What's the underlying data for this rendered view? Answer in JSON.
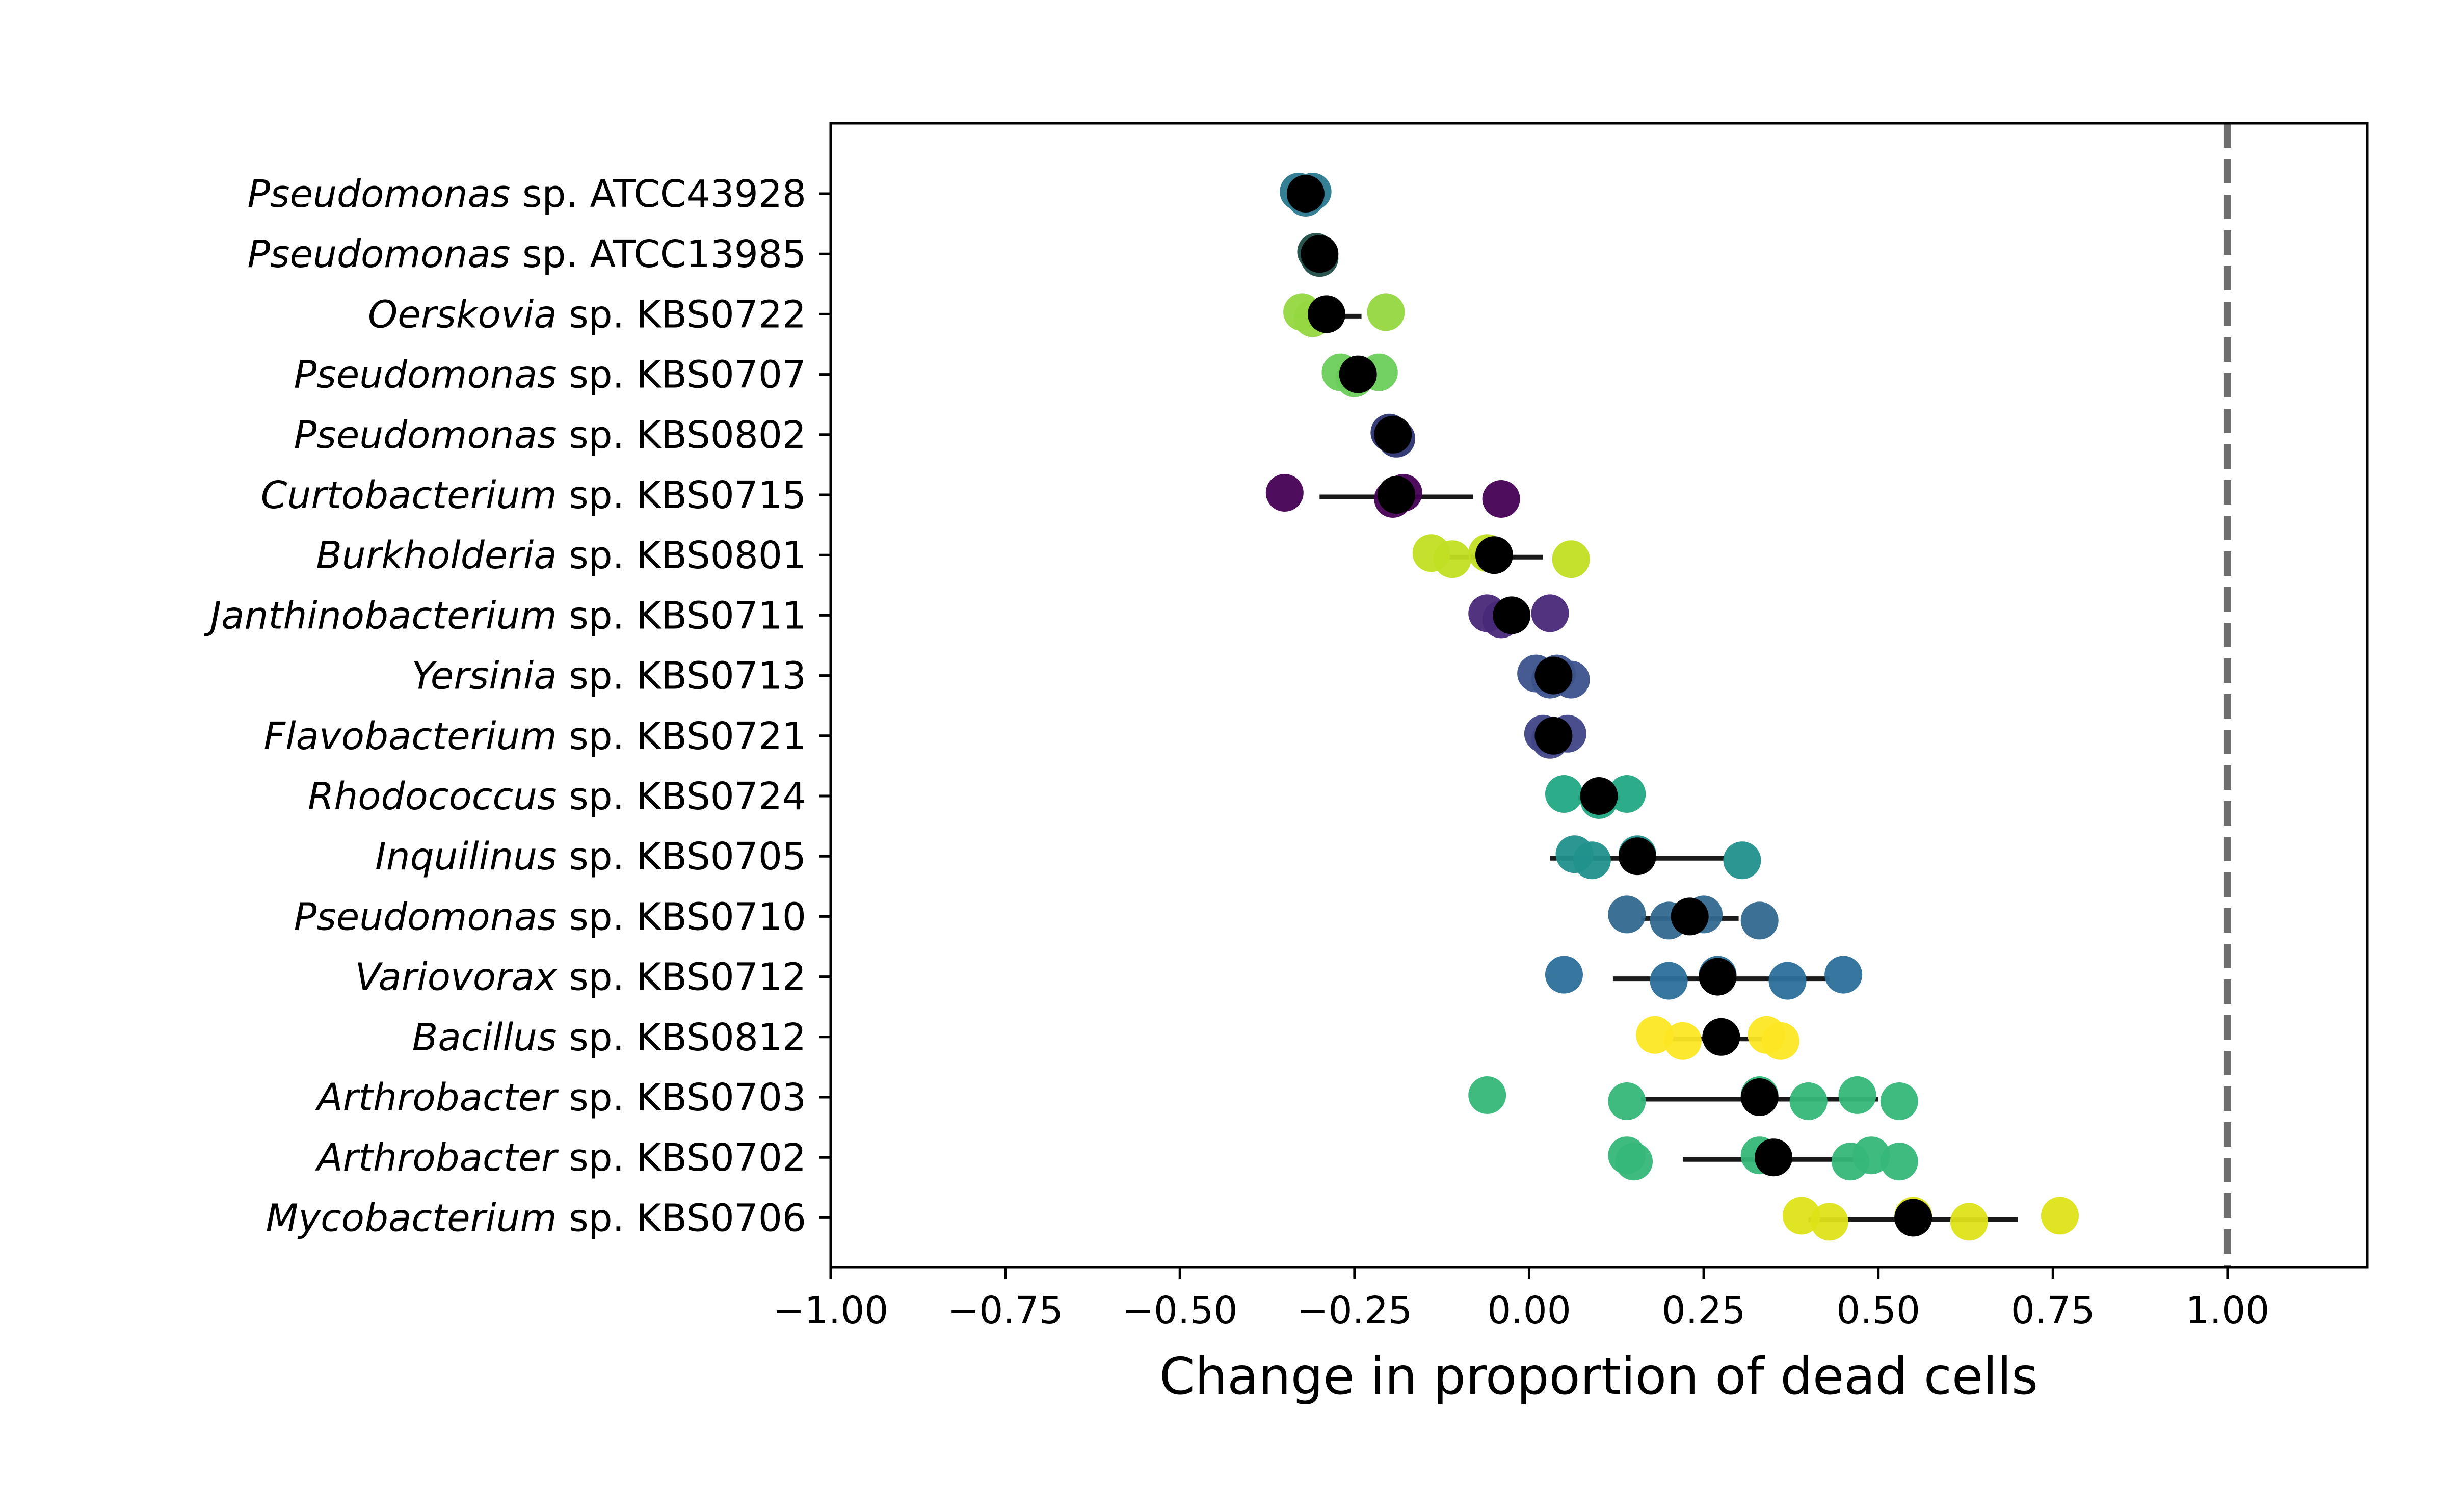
{
  "chart_data": {
    "type": "scatter",
    "title": "",
    "xlabel": "Change in proportion of dead cells",
    "ylabel": "",
    "xlim": [
      -1.0,
      1.2
    ],
    "x_ticks": [
      "−1.00",
      "−0.75",
      "−0.50",
      "−0.25",
      "0.00",
      "0.25",
      "0.50",
      "0.75",
      "1.00"
    ],
    "x_tick_values": [
      -1.0,
      -0.75,
      -0.5,
      -0.25,
      0.0,
      0.25,
      0.5,
      0.75,
      1.0
    ],
    "reference_line": {
      "x": 1.0,
      "style": "dashed",
      "color": "#6e6e6e"
    },
    "grid": false,
    "mean_marker_color": "#000000",
    "categories": [
      {
        "genus": "Pseudomonas",
        "strain": "sp. ATCC43928",
        "color": "#2a788e",
        "points": [
          -0.33,
          -0.32,
          -0.31
        ],
        "mean": -0.32,
        "ci": [
          -0.33,
          -0.31
        ]
      },
      {
        "genus": "Pseudomonas",
        "strain": "sp. ATCC13985",
        "color": "#1f4b45",
        "points": [
          -0.305,
          -0.3
        ],
        "mean": -0.3,
        "ci": [
          -0.305,
          -0.3
        ]
      },
      {
        "genus": "Oerskovia",
        "strain": "sp. KBS0722",
        "color": "#95d840",
        "points": [
          -0.325,
          -0.31,
          -0.205
        ],
        "mean": -0.29,
        "ci": [
          -0.335,
          -0.24
        ]
      },
      {
        "genus": "Pseudomonas",
        "strain": "sp. KBS0707",
        "color": "#6ccd5a",
        "points": [
          -0.27,
          -0.25,
          -0.215
        ],
        "mean": -0.245,
        "ci": [
          -0.26,
          -0.23
        ]
      },
      {
        "genus": "Pseudomonas",
        "strain": "sp. KBS0802",
        "color": "#2b316f",
        "points": [
          -0.2,
          -0.19
        ],
        "mean": -0.195,
        "ci": [
          -0.2,
          -0.19
        ]
      },
      {
        "genus": "Curtobacterium",
        "strain": "sp. KBS0715",
        "color": "#440154",
        "points": [
          -0.35,
          -0.195,
          -0.18,
          -0.04
        ],
        "mean": -0.19,
        "ci": [
          -0.3,
          -0.08
        ]
      },
      {
        "genus": "Burkholderia",
        "strain": "sp. KBS0801",
        "color": "#c2df23",
        "points": [
          -0.14,
          -0.11,
          -0.06,
          0.06
        ],
        "mean": -0.05,
        "ci": [
          -0.12,
          0.02
        ]
      },
      {
        "genus": "Janthinobacterium",
        "strain": "sp. KBS0711",
        "color": "#482878",
        "points": [
          -0.06,
          -0.04,
          0.03
        ],
        "mean": -0.025,
        "ci": [
          -0.04,
          -0.01
        ]
      },
      {
        "genus": "Yersinia",
        "strain": "sp. KBS0713",
        "color": "#3b528b",
        "points": [
          0.01,
          0.03,
          0.04,
          0.06
        ],
        "mean": 0.035,
        "ci": [
          0.02,
          0.05
        ]
      },
      {
        "genus": "Flavobacterium",
        "strain": "sp. KBS0721",
        "color": "#414487",
        "points": [
          0.02,
          0.03,
          0.055
        ],
        "mean": 0.035,
        "ci": [
          0.025,
          0.045
        ]
      },
      {
        "genus": "Rhodococcus",
        "strain": "sp. KBS0724",
        "color": "#22a884",
        "points": [
          0.05,
          0.1,
          0.14
        ],
        "mean": 0.1,
        "ci": [
          0.07,
          0.13
        ]
      },
      {
        "genus": "Inquilinus",
        "strain": "sp. KBS0705",
        "color": "#21918c",
        "points": [
          0.065,
          0.09,
          0.155,
          0.305
        ],
        "mean": 0.155,
        "ci": [
          0.03,
          0.28
        ]
      },
      {
        "genus": "Pseudomonas",
        "strain": "sp. KBS0710",
        "color": "#31688e",
        "points": [
          0.14,
          0.2,
          0.25,
          0.33
        ],
        "mean": 0.23,
        "ci": [
          0.16,
          0.3
        ]
      },
      {
        "genus": "Variovorax",
        "strain": "sp. KBS0712",
        "color": "#2c6f9a",
        "points": [
          0.05,
          0.2,
          0.27,
          0.37,
          0.45
        ],
        "mean": 0.27,
        "ci": [
          0.12,
          0.43
        ]
      },
      {
        "genus": "Bacillus",
        "strain": "sp. KBS0812",
        "color": "#fde725",
        "points": [
          0.18,
          0.22,
          0.34,
          0.36
        ],
        "mean": 0.275,
        "ci": [
          0.2,
          0.35
        ]
      },
      {
        "genus": "Arthrobacter",
        "strain": "sp. KBS0703",
        "color": "#35b779",
        "points": [
          -0.06,
          0.14,
          0.33,
          0.4,
          0.47,
          0.53
        ],
        "mean": 0.33,
        "ci": [
          0.16,
          0.5
        ]
      },
      {
        "genus": "Arthrobacter",
        "strain": "sp. KBS0702",
        "color": "#35b779",
        "points": [
          0.14,
          0.15,
          0.33,
          0.46,
          0.49,
          0.53
        ],
        "mean": 0.35,
        "ci": [
          0.22,
          0.48
        ]
      },
      {
        "genus": "Mycobacterium",
        "strain": "sp. KBS0706",
        "color": "#dde318",
        "points": [
          0.39,
          0.43,
          0.55,
          0.63,
          0.76
        ],
        "mean": 0.55,
        "ci": [
          0.4,
          0.7
        ]
      }
    ]
  }
}
